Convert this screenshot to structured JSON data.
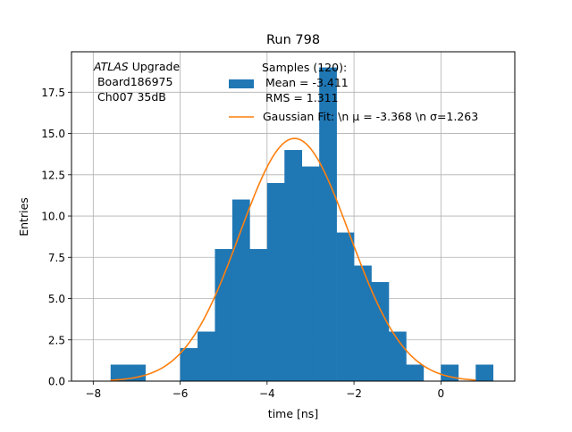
{
  "chart_data": {
    "type": "bar",
    "title": "Run 798",
    "xlabel": "time [ns]",
    "ylabel": "Entries",
    "xlim": [
      -8.5,
      1.7
    ],
    "ylim": [
      0,
      19.95
    ],
    "grid": true,
    "xticks": [
      -8,
      -6,
      -4,
      -2,
      0
    ],
    "xtick_labels": [
      "−8",
      "−6",
      "−4",
      "−2",
      "0"
    ],
    "yticks": [
      0,
      2.5,
      5,
      7.5,
      10,
      12.5,
      15,
      17.5
    ],
    "ytick_labels": [
      "0.0",
      "2.5",
      "5.0",
      "7.5",
      "10.0",
      "12.5",
      "15.0",
      "17.5"
    ],
    "annotation": {
      "italic": "ATLAS",
      "line1_rest": " Upgrade",
      "line2": " Board186975",
      "line3": " Ch007 35dB"
    },
    "histogram": {
      "name_lines": [
        "Samples (120):",
        " Mean = -3.411",
        " RMS = 1.311"
      ],
      "color": "#1f77b4",
      "bin_edges": [
        -7.6,
        -7.2,
        -6.8,
        -6.4,
        -6.0,
        -5.6,
        -5.2,
        -4.8,
        -4.4,
        -4.0,
        -3.6,
        -3.2,
        -2.8,
        -2.4,
        -2.0,
        -1.6,
        -1.2,
        -0.8,
        -0.4,
        0.0,
        0.4,
        0.8,
        1.2
      ],
      "counts": [
        1,
        1,
        0,
        0,
        2,
        3,
        8,
        11,
        8,
        12,
        14,
        13,
        19,
        9,
        7,
        6,
        3,
        1,
        0,
        1,
        0,
        1
      ]
    },
    "fit": {
      "name": "Gaussian Fit: \\n μ = -3.368 \\n σ=1.263",
      "color": "#ff7f0e",
      "mu": -3.368,
      "sigma": 1.263,
      "amplitude": 14.7,
      "x_range": [
        -7.6,
        0.8
      ]
    },
    "legend_position": "top-right"
  }
}
